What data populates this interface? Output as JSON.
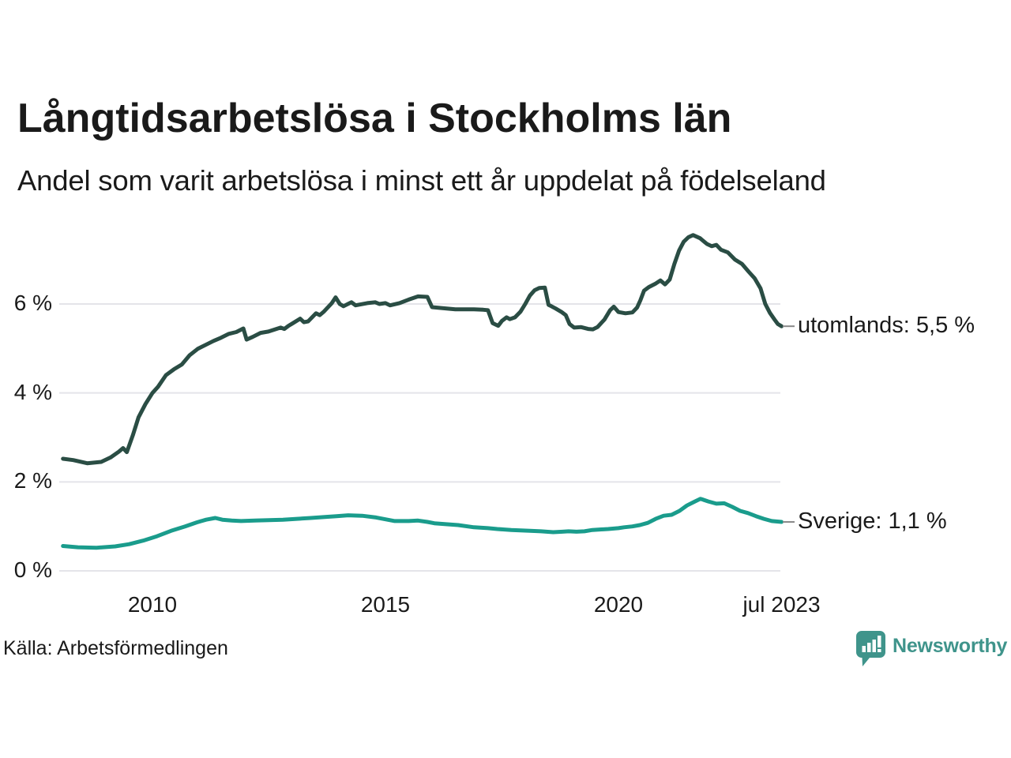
{
  "title": "Långtidsarbetslösa i Stockholms län",
  "subtitle": "Andel som varit arbetslösa i minst ett år uppdelat på födelseland",
  "source": "Källa: Arbetsförmedlingen",
  "brand": {
    "name": "Newsworthy",
    "color": "#3f948b"
  },
  "chart_data": {
    "type": "line",
    "grid": true,
    "gridline_color": "#e4e4e9",
    "x_axis": {
      "min": 2008.08,
      "max": 2023.5,
      "ticks": [
        2010,
        2015,
        2020,
        2023.5
      ],
      "tick_labels": [
        "2010",
        "2015",
        "2020",
        "jul 2023"
      ]
    },
    "y_axis": {
      "unit": "%",
      "ticks": [
        0,
        2,
        4,
        6
      ],
      "tick_labels": [
        "0 %",
        "2 %",
        "4 %",
        "6 %"
      ],
      "max": 7.6
    },
    "series": [
      {
        "name": "utomlands",
        "label": "utomlands: 5,5 %",
        "color": "#2a4d44",
        "end_value": 5.5,
        "points": [
          [
            2008.08,
            2.52
          ],
          [
            2008.3,
            2.49
          ],
          [
            2008.6,
            2.42
          ],
          [
            2008.9,
            2.45
          ],
          [
            2009.1,
            2.55
          ],
          [
            2009.28,
            2.68
          ],
          [
            2009.37,
            2.76
          ],
          [
            2009.45,
            2.67
          ],
          [
            2009.58,
            3.05
          ],
          [
            2009.7,
            3.45
          ],
          [
            2009.85,
            3.75
          ],
          [
            2010.0,
            4.0
          ],
          [
            2010.12,
            4.14
          ],
          [
            2010.29,
            4.4
          ],
          [
            2010.46,
            4.53
          ],
          [
            2010.63,
            4.64
          ],
          [
            2010.8,
            4.85
          ],
          [
            2010.97,
            4.99
          ],
          [
            2011.14,
            5.08
          ],
          [
            2011.31,
            5.17
          ],
          [
            2011.47,
            5.24
          ],
          [
            2011.64,
            5.33
          ],
          [
            2011.8,
            5.37
          ],
          [
            2011.95,
            5.45
          ],
          [
            2012.02,
            5.2
          ],
          [
            2012.15,
            5.26
          ],
          [
            2012.32,
            5.35
          ],
          [
            2012.49,
            5.38
          ],
          [
            2012.66,
            5.44
          ],
          [
            2012.75,
            5.47
          ],
          [
            2012.83,
            5.44
          ],
          [
            2012.92,
            5.51
          ],
          [
            2013.0,
            5.56
          ],
          [
            2013.17,
            5.67
          ],
          [
            2013.25,
            5.59
          ],
          [
            2013.34,
            5.61
          ],
          [
            2013.51,
            5.79
          ],
          [
            2013.59,
            5.75
          ],
          [
            2013.68,
            5.83
          ],
          [
            2013.85,
            6.02
          ],
          [
            2013.93,
            6.15
          ],
          [
            2014.02,
            6.0
          ],
          [
            2014.1,
            5.95
          ],
          [
            2014.27,
            6.04
          ],
          [
            2014.36,
            5.97
          ],
          [
            2014.61,
            6.02
          ],
          [
            2014.78,
            6.04
          ],
          [
            2014.87,
            6.0
          ],
          [
            2015.0,
            6.02
          ],
          [
            2015.1,
            5.97
          ],
          [
            2015.3,
            6.02
          ],
          [
            2015.5,
            6.1
          ],
          [
            2015.7,
            6.17
          ],
          [
            2015.9,
            6.16
          ],
          [
            2016.0,
            5.93
          ],
          [
            2016.2,
            5.91
          ],
          [
            2016.5,
            5.88
          ],
          [
            2016.9,
            5.88
          ],
          [
            2017.1,
            5.87
          ],
          [
            2017.2,
            5.86
          ],
          [
            2017.3,
            5.57
          ],
          [
            2017.42,
            5.51
          ],
          [
            2017.5,
            5.62
          ],
          [
            2017.6,
            5.7
          ],
          [
            2017.67,
            5.66
          ],
          [
            2017.78,
            5.7
          ],
          [
            2017.9,
            5.83
          ],
          [
            2018.0,
            6.0
          ],
          [
            2018.1,
            6.19
          ],
          [
            2018.2,
            6.31
          ],
          [
            2018.3,
            6.36
          ],
          [
            2018.42,
            6.37
          ],
          [
            2018.5,
            5.98
          ],
          [
            2018.56,
            5.95
          ],
          [
            2018.65,
            5.9
          ],
          [
            2018.78,
            5.82
          ],
          [
            2018.87,
            5.75
          ],
          [
            2018.95,
            5.55
          ],
          [
            2019.05,
            5.47
          ],
          [
            2019.2,
            5.48
          ],
          [
            2019.35,
            5.44
          ],
          [
            2019.45,
            5.43
          ],
          [
            2019.55,
            5.48
          ],
          [
            2019.7,
            5.65
          ],
          [
            2019.82,
            5.86
          ],
          [
            2019.9,
            5.94
          ],
          [
            2020.0,
            5.82
          ],
          [
            2020.15,
            5.79
          ],
          [
            2020.3,
            5.81
          ],
          [
            2020.4,
            5.92
          ],
          [
            2020.47,
            6.08
          ],
          [
            2020.55,
            6.3
          ],
          [
            2020.65,
            6.38
          ],
          [
            2020.8,
            6.46
          ],
          [
            2020.9,
            6.53
          ],
          [
            2021.0,
            6.44
          ],
          [
            2021.1,
            6.55
          ],
          [
            2021.2,
            6.9
          ],
          [
            2021.3,
            7.2
          ],
          [
            2021.4,
            7.4
          ],
          [
            2021.5,
            7.5
          ],
          [
            2021.6,
            7.55
          ],
          [
            2021.75,
            7.48
          ],
          [
            2021.9,
            7.35
          ],
          [
            2022.0,
            7.3
          ],
          [
            2022.1,
            7.33
          ],
          [
            2022.2,
            7.22
          ],
          [
            2022.35,
            7.16
          ],
          [
            2022.5,
            7.0
          ],
          [
            2022.65,
            6.9
          ],
          [
            2022.8,
            6.72
          ],
          [
            2022.92,
            6.58
          ],
          [
            2023.05,
            6.35
          ],
          [
            2023.15,
            6.0
          ],
          [
            2023.25,
            5.8
          ],
          [
            2023.35,
            5.65
          ],
          [
            2023.42,
            5.55
          ],
          [
            2023.5,
            5.5
          ]
        ]
      },
      {
        "name": "Sverige",
        "label": "Sverige: 1,1 %",
        "color": "#1a9c8c",
        "end_value": 1.1,
        "points": [
          [
            2008.08,
            0.56
          ],
          [
            2008.4,
            0.53
          ],
          [
            2008.8,
            0.52
          ],
          [
            2009.2,
            0.55
          ],
          [
            2009.5,
            0.6
          ],
          [
            2009.8,
            0.68
          ],
          [
            2010.1,
            0.78
          ],
          [
            2010.4,
            0.9
          ],
          [
            2010.7,
            1.0
          ],
          [
            2010.95,
            1.09
          ],
          [
            2011.15,
            1.15
          ],
          [
            2011.35,
            1.19
          ],
          [
            2011.5,
            1.15
          ],
          [
            2011.7,
            1.13
          ],
          [
            2011.9,
            1.12
          ],
          [
            2012.2,
            1.13
          ],
          [
            2012.5,
            1.14
          ],
          [
            2012.8,
            1.15
          ],
          [
            2013.1,
            1.17
          ],
          [
            2013.4,
            1.19
          ],
          [
            2013.7,
            1.21
          ],
          [
            2013.95,
            1.23
          ],
          [
            2014.2,
            1.25
          ],
          [
            2014.5,
            1.24
          ],
          [
            2014.8,
            1.2
          ],
          [
            2015.0,
            1.16
          ],
          [
            2015.2,
            1.12
          ],
          [
            2015.5,
            1.12
          ],
          [
            2015.7,
            1.13
          ],
          [
            2015.9,
            1.1
          ],
          [
            2016.05,
            1.07
          ],
          [
            2016.3,
            1.05
          ],
          [
            2016.56,
            1.03
          ],
          [
            2016.9,
            0.98
          ],
          [
            2017.2,
            0.96
          ],
          [
            2017.4,
            0.94
          ],
          [
            2017.7,
            0.92
          ],
          [
            2017.9,
            0.91
          ],
          [
            2018.1,
            0.9
          ],
          [
            2018.34,
            0.89
          ],
          [
            2018.6,
            0.87
          ],
          [
            2018.8,
            0.88
          ],
          [
            2018.93,
            0.89
          ],
          [
            2019.1,
            0.88
          ],
          [
            2019.27,
            0.89
          ],
          [
            2019.44,
            0.92
          ],
          [
            2019.6,
            0.93
          ],
          [
            2019.78,
            0.94
          ],
          [
            2020.0,
            0.96
          ],
          [
            2020.12,
            0.98
          ],
          [
            2020.3,
            1.0
          ],
          [
            2020.46,
            1.03
          ],
          [
            2020.63,
            1.08
          ],
          [
            2020.8,
            1.17
          ],
          [
            2020.97,
            1.24
          ],
          [
            2021.14,
            1.26
          ],
          [
            2021.31,
            1.35
          ],
          [
            2021.47,
            1.47
          ],
          [
            2021.64,
            1.56
          ],
          [
            2021.76,
            1.62
          ],
          [
            2021.93,
            1.56
          ],
          [
            2022.1,
            1.51
          ],
          [
            2022.27,
            1.52
          ],
          [
            2022.44,
            1.44
          ],
          [
            2022.61,
            1.35
          ],
          [
            2022.78,
            1.3
          ],
          [
            2022.95,
            1.23
          ],
          [
            2023.12,
            1.17
          ],
          [
            2023.29,
            1.12
          ],
          [
            2023.5,
            1.1
          ]
        ]
      }
    ]
  }
}
